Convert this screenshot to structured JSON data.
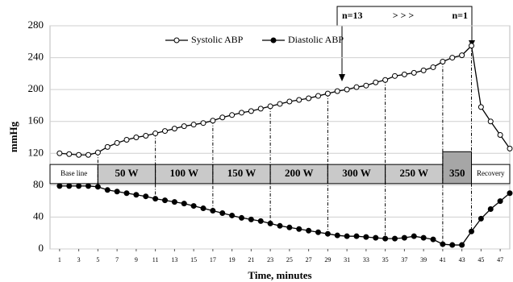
{
  "chart_data": {
    "type": "line",
    "y_label": "mmHg",
    "x_label": "Time, minutes",
    "x": [
      1,
      2,
      3,
      4,
      5,
      6,
      7,
      8,
      9,
      10,
      11,
      12,
      13,
      14,
      15,
      16,
      17,
      18,
      19,
      20,
      21,
      22,
      23,
      24,
      25,
      26,
      27,
      28,
      29,
      30,
      31,
      32,
      33,
      34,
      35,
      36,
      37,
      38,
      39,
      40,
      41,
      42,
      43,
      44,
      45,
      46,
      47,
      48
    ],
    "series": [
      {
        "name": "Systolic ABP",
        "color": "#000000",
        "marker": "open",
        "values": [
          120,
          119,
          118,
          118,
          121,
          128,
          133,
          137,
          140,
          142,
          145,
          148,
          151,
          154,
          156,
          158,
          161,
          165,
          168,
          171,
          173,
          176,
          179,
          182,
          185,
          187,
          189,
          192,
          195,
          198,
          200,
          203,
          205,
          209,
          212,
          217,
          219,
          221,
          224,
          228,
          235,
          240,
          243,
          255,
          178,
          160,
          143,
          126
        ]
      },
      {
        "name": "Diastolic ABP",
        "color": "#000000",
        "marker": "filled",
        "values": [
          79,
          79,
          79,
          79,
          78,
          74,
          72,
          70,
          68,
          66,
          63,
          61,
          59,
          57,
          54,
          51,
          48,
          45,
          42,
          39,
          37,
          35,
          32,
          29,
          27,
          25,
          23,
          21,
          19,
          17,
          16,
          16,
          15,
          14,
          13,
          13,
          14,
          16,
          14,
          12,
          6,
          5,
          5,
          22,
          38,
          50,
          60,
          70
        ]
      }
    ],
    "xlim": [
      0,
      48
    ],
    "ylim": [
      0,
      280
    ],
    "yticks": [
      0,
      40,
      80,
      120,
      160,
      200,
      240,
      280
    ],
    "xticks": [
      1,
      3,
      5,
      7,
      9,
      11,
      13,
      15,
      17,
      19,
      21,
      23,
      25,
      27,
      29,
      31,
      33,
      35,
      37,
      39,
      41,
      43,
      45,
      47
    ],
    "grid": true,
    "stages": [
      {
        "label": "Base line",
        "start": 0,
        "end": 5
      },
      {
        "label": "50 W",
        "start": 5,
        "end": 11
      },
      {
        "label": "100 W",
        "start": 11,
        "end": 17
      },
      {
        "label": "150 W",
        "start": 17,
        "end": 23
      },
      {
        "label": "200 W",
        "start": 23,
        "end": 29
      },
      {
        "label": "300 W",
        "start": 29,
        "end": 35
      },
      {
        "label": "250 W",
        "start": 35,
        "end": 41
      },
      {
        "label": "350",
        "start": 41,
        "end": 44
      },
      {
        "label": "Recovery",
        "start": 44,
        "end": 48
      }
    ],
    "n_box": [
      "n=13",
      "> > >",
      "n=1"
    ]
  }
}
